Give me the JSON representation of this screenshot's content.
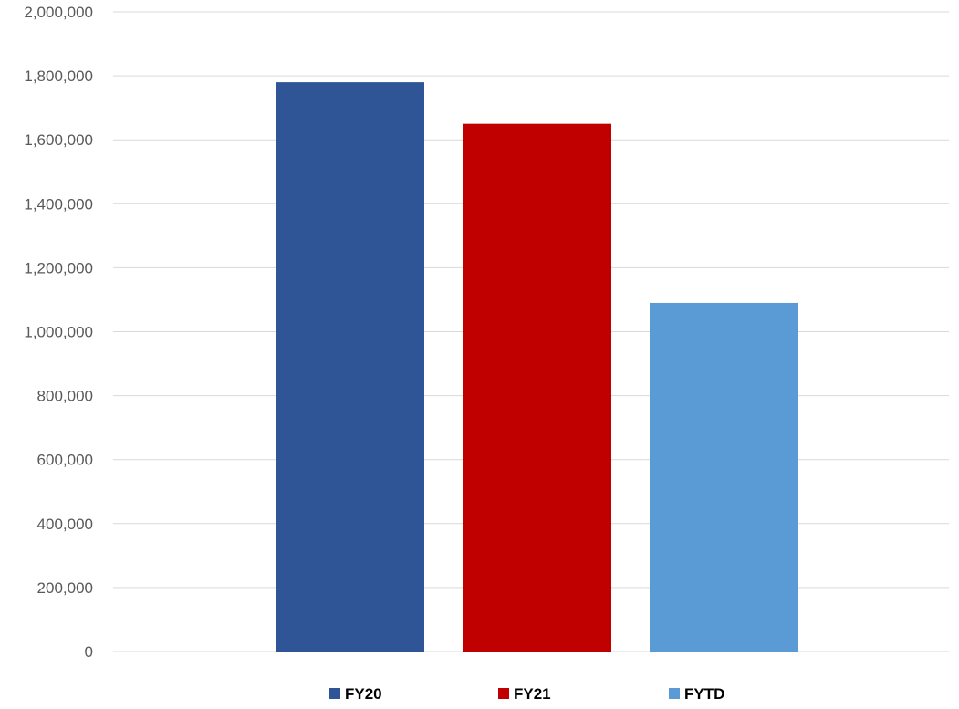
{
  "chart_data": {
    "type": "bar",
    "title": "",
    "xlabel": "",
    "ylabel": "",
    "ylim": [
      0,
      2000000
    ],
    "y_ticks": [
      "0",
      "200,000",
      "400,000",
      "600,000",
      "800,000",
      "1,000,000",
      "1,200,000",
      "1,400,000",
      "1,600,000",
      "1,800,000",
      "2,000,000"
    ],
    "grid": true,
    "legend_position": "bottom",
    "series": [
      {
        "name": "FY20",
        "values": [
          1780000
        ],
        "color": "#2f5597"
      },
      {
        "name": "FY21",
        "values": [
          1650000
        ],
        "color": "#c00000"
      },
      {
        "name": "FYTD",
        "values": [
          1090000
        ],
        "color": "#5b9bd5"
      }
    ]
  }
}
